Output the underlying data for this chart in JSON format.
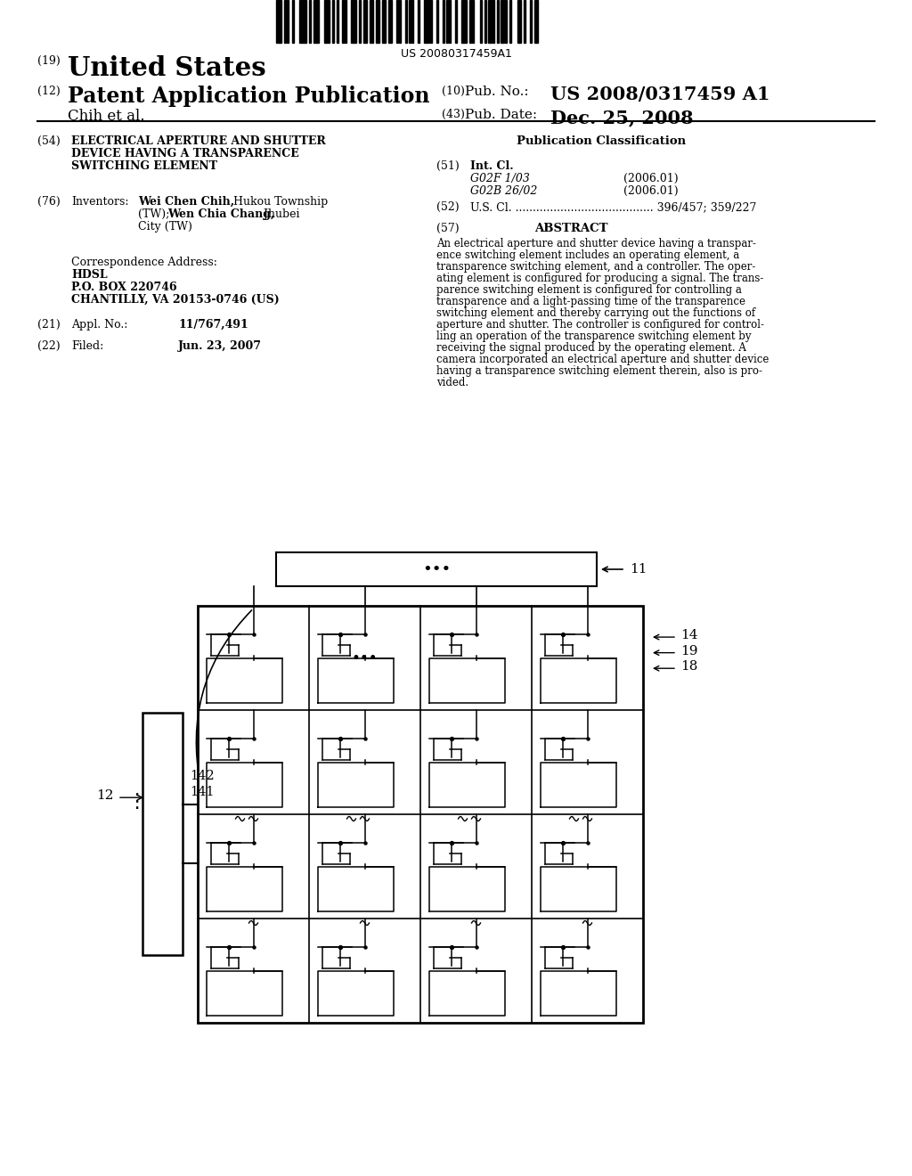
{
  "bg_color": "#ffffff",
  "barcode_text": "US 20080317459A1",
  "patent_number": "US 2008/0317459 A1",
  "pub_date": "Dec. 25, 2008",
  "filing_date": "Jun. 23, 2007",
  "appl_no": "11/767,491",
  "abstract_lines": [
    "An electrical aperture and shutter device having a transpar-",
    "ence switching element includes an operating element, a",
    "transparence switching element, and a controller. The oper-",
    "ating element is configured for producing a signal. The trans-",
    "parence switching element is configured for controlling a",
    "transparence and a light-passing time of the transparence",
    "switching element and thereby carrying out the functions of",
    "aperture and shutter. The controller is configured for control-",
    "ling an operation of the transparence switching element by",
    "receiving the signal produced by the operating element. A",
    "camera incorporated an electrical aperture and shutter device",
    "having a transparence switching element therein, also is pro-",
    "vided."
  ]
}
